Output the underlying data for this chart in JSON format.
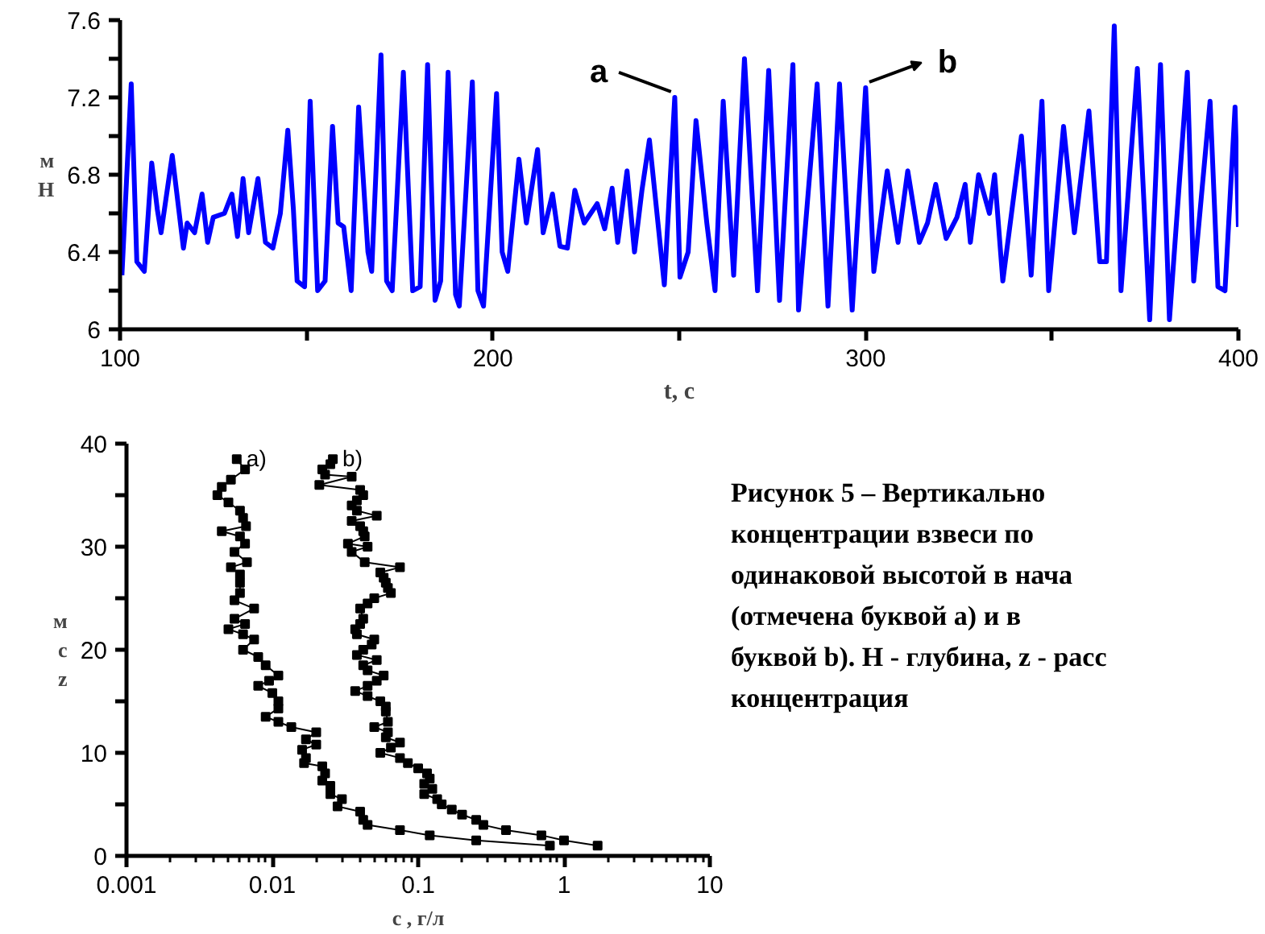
{
  "chart_data": [
    {
      "type": "line",
      "xlabel": "t, c",
      "ylabel": "м\nH",
      "x": [
        100.5,
        103,
        104.5,
        106.5,
        108.5,
        110,
        111,
        114,
        117,
        118,
        120,
        122,
        123.5,
        125,
        128,
        130,
        131.5,
        133,
        134.5,
        137,
        139,
        141,
        143,
        145,
        146.5,
        147.5,
        149.5,
        151,
        153,
        155,
        157,
        158.5,
        160,
        162,
        164,
        166.5,
        167.5,
        170,
        171.5,
        173,
        176,
        178.5,
        180.5,
        182.5,
        184.5,
        186,
        188,
        190,
        191,
        194.5,
        196,
        197.5,
        201,
        202.5,
        204,
        207,
        209,
        212,
        213.5,
        216,
        218,
        220,
        222,
        224.5,
        228,
        230,
        232,
        233.5,
        236,
        238,
        240,
        242,
        246,
        248.8,
        250.2,
        252.4,
        254.5,
        257.4,
        259.6,
        261.8,
        264.6,
        267.5,
        271,
        274,
        276.9,
        280.5,
        282,
        287,
        289.9,
        293,
        296.4,
        300,
        302.2,
        305.8,
        308.7,
        311.3,
        314.4,
        316.6,
        318.8,
        321.6,
        324.5,
        326.7,
        328.1,
        330.3,
        333.2,
        334.6,
        336.8,
        341.8,
        344.4,
        347.3,
        349.1,
        353.1,
        356,
        359.9,
        362.8,
        364.6,
        366.7,
        368.5,
        372.9,
        376.2,
        379.1,
        381.5,
        386.3,
        388,
        392.4,
        394.5,
        396.4,
        399.1,
        400
      ],
      "series": [
        {
          "color": "#0000ff",
          "values": [
            6.28,
            7.27,
            6.35,
            6.3,
            6.86,
            6.62,
            6.5,
            6.9,
            6.42,
            6.55,
            6.5,
            6.7,
            6.45,
            6.58,
            6.6,
            6.7,
            6.48,
            6.78,
            6.5,
            6.78,
            6.45,
            6.42,
            6.6,
            7.03,
            6.62,
            6.25,
            6.22,
            7.18,
            6.2,
            6.25,
            7.05,
            6.55,
            6.53,
            6.2,
            7.15,
            6.4,
            6.3,
            7.42,
            6.25,
            6.2,
            7.33,
            6.2,
            6.22,
            7.37,
            6.15,
            6.25,
            7.33,
            6.18,
            6.12,
            7.28,
            6.2,
            6.12,
            7.22,
            6.4,
            6.3,
            6.88,
            6.55,
            6.93,
            6.5,
            6.7,
            6.43,
            6.42,
            6.72,
            6.55,
            6.65,
            6.52,
            6.73,
            6.45,
            6.82,
            6.4,
            6.72,
            6.98,
            6.23,
            7.2,
            6.27,
            6.4,
            7.08,
            6.55,
            6.2,
            7.18,
            6.28,
            7.4,
            6.2,
            7.34,
            6.15,
            7.37,
            6.1,
            7.27,
            6.12,
            7.27,
            6.1,
            7.25,
            6.3,
            6.82,
            6.45,
            6.82,
            6.45,
            6.55,
            6.75,
            6.47,
            6.58,
            6.75,
            6.45,
            6.8,
            6.6,
            6.8,
            6.25,
            7.0,
            6.28,
            7.18,
            6.2,
            7.05,
            6.5,
            7.13,
            6.35,
            6.35,
            7.57,
            6.2,
            7.35,
            6.05,
            7.37,
            6.05,
            7.33,
            6.25,
            7.18,
            6.22,
            6.2,
            7.15,
            6.53
          ]
        }
      ],
      "xlim": [
        100,
        400
      ],
      "ylim": [
        6,
        7.6
      ],
      "xticks": [
        100,
        {
          "value": 150,
          "label": null
        },
        200,
        {
          "value": 250,
          "label": null
        },
        300,
        {
          "value": 350,
          "label": null
        },
        400
      ],
      "yticks": [
        6,
        {
          "value": 6.2,
          "label": null
        },
        6.4,
        {
          "value": 6.6,
          "label": null
        },
        6.8,
        {
          "value": 7.0,
          "label": null
        },
        7.2,
        {
          "value": 7.4,
          "label": null
        },
        7.6
      ],
      "marker": "none",
      "line_style": "solid",
      "grid": false,
      "annotations": [
        {
          "text": "a",
          "x": 248.8,
          "y": 7.2
        },
        {
          "text": "b",
          "x": 300,
          "y": 7.25
        }
      ]
    },
    {
      "type": "line",
      "xlabel": "c , г/л",
      "ylabel": "м\nс\nz",
      "log": "x",
      "xlim": [
        0.001,
        10
      ],
      "ylim": [
        0,
        40
      ],
      "xticks": [
        0.001,
        0.01,
        0.1,
        1,
        10
      ],
      "yticks": [
        0,
        {
          "value": 5,
          "label": null
        },
        10,
        {
          "value": 15,
          "label": null
        },
        20,
        {
          "value": 25,
          "label": null
        },
        30,
        {
          "value": 35,
          "label": null
        },
        40
      ],
      "marker": "square",
      "line_style": "solid",
      "grid": false,
      "series": [
        {
          "color": "#000000",
          "x": [
            0.0057,
            0.0065,
            0.0052,
            0.0045,
            0.0042,
            0.005,
            0.006,
            0.0063,
            0.0066,
            0.0045,
            0.006,
            0.0065,
            0.0055,
            0.0067,
            0.0052,
            0.006,
            0.006,
            0.006,
            0.0055,
            0.0075,
            0.0055,
            0.0065,
            0.005,
            0.0063,
            0.0075,
            0.0063,
            0.008,
            0.009,
            0.011,
            0.0095,
            0.008,
            0.01,
            0.011,
            0.011,
            0.009,
            0.011,
            0.0135,
            0.02,
            0.017,
            0.02,
            0.016,
            0.017,
            0.0165,
            0.022,
            0.023,
            0.022,
            0.025,
            0.025,
            0.03,
            0.028,
            0.04,
            0.042,
            0.045,
            0.075,
            0.12,
            0.25,
            0.8
          ],
          "values": [
            38.5,
            37.5,
            36.5,
            35.8,
            35,
            34.3,
            33.5,
            32.8,
            32,
            31.5,
            31,
            30.3,
            29.5,
            28.5,
            28,
            27.3,
            26.5,
            25.5,
            24.8,
            24,
            23,
            22.5,
            22,
            21.5,
            21,
            20,
            19.3,
            18.5,
            17.5,
            17,
            16.5,
            15.8,
            15,
            14.3,
            13.5,
            13,
            12.5,
            12,
            11.3,
            10.8,
            10.3,
            9.5,
            9,
            8.7,
            8,
            7.3,
            6.8,
            6,
            5.5,
            4.8,
            4.3,
            3.5,
            3,
            2.5,
            2,
            1.5,
            1
          ]
        },
        {
          "color": "#000000",
          "x": [
            0.026,
            0.025,
            0.022,
            0.023,
            0.035,
            0.021,
            0.04,
            0.042,
            0.038,
            0.035,
            0.038,
            0.052,
            0.035,
            0.04,
            0.042,
            0.043,
            0.033,
            0.045,
            0.035,
            0.043,
            0.075,
            0.055,
            0.058,
            0.06,
            0.062,
            0.065,
            0.05,
            0.045,
            0.04,
            0.042,
            0.04,
            0.037,
            0.038,
            0.05,
            0.048,
            0.042,
            0.038,
            0.052,
            0.042,
            0.045,
            0.058,
            0.052,
            0.045,
            0.037,
            0.045,
            0.055,
            0.06,
            0.06,
            0.062,
            0.05,
            0.062,
            0.06,
            0.075,
            0.065,
            0.055,
            0.075,
            0.085,
            0.1,
            0.115,
            0.12,
            0.11,
            0.125,
            0.11,
            0.135,
            0.145,
            0.17,
            0.2,
            0.25,
            0.28,
            0.4,
            0.7,
            1.0,
            1.7
          ],
          "values": [
            38.5,
            38,
            37.5,
            37,
            36.8,
            36,
            35.5,
            35,
            34.5,
            34,
            33.5,
            33,
            32.5,
            32,
            31.5,
            31,
            30.3,
            30,
            29.5,
            28.5,
            28,
            27.5,
            27,
            26.5,
            26,
            25.5,
            25,
            24.5,
            24,
            23,
            22.5,
            22,
            21.5,
            21,
            20.5,
            20,
            19.5,
            19,
            18.5,
            18,
            17.5,
            17,
            16.5,
            16,
            15.5,
            15,
            14.5,
            14,
            13,
            12.5,
            12,
            11.5,
            11,
            10.5,
            10,
            9.5,
            9,
            8.5,
            8,
            7.5,
            7,
            6.5,
            6,
            5.5,
            5,
            4.5,
            4,
            3.5,
            3,
            2.5,
            2,
            1.5,
            1
          ]
        }
      ],
      "annotations": [
        "a)",
        "b)",
        "Рисунок 5 – Вертикально\nконцентрации взвеси по\nодинаковой высотой в нача\n(отмечена буквой a) и в\nбуквой b). H - глубина, z - расс\nконцентрация"
      ]
    }
  ]
}
